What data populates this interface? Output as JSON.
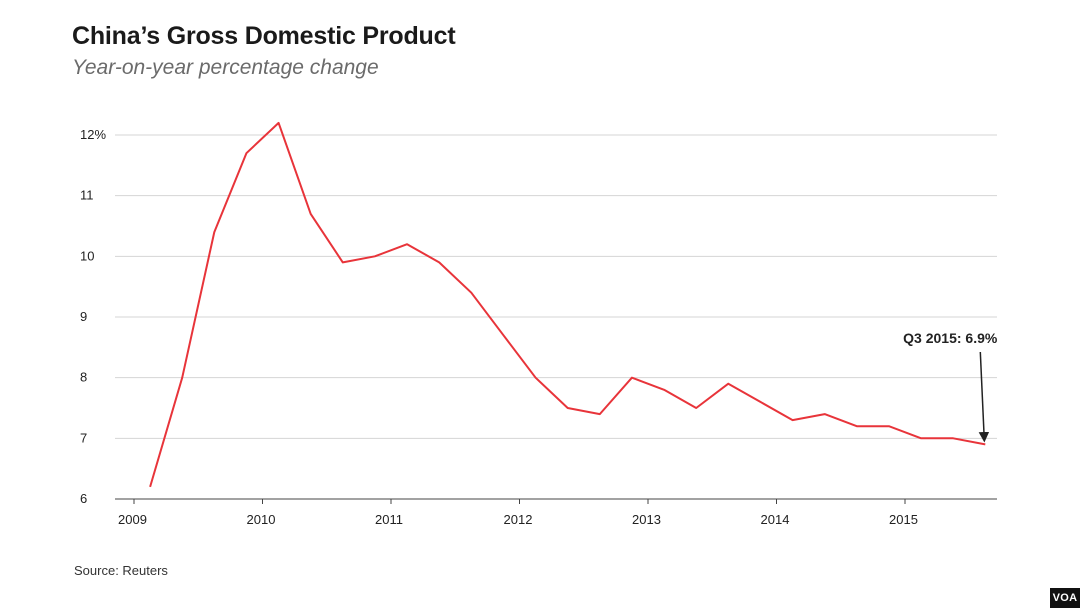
{
  "header": {
    "title": "China’s Gross Domestic Product",
    "subtitle": "Year-on-year percentage change"
  },
  "footer": {
    "source": "Source: Reuters",
    "logo": "VOA"
  },
  "colors": {
    "line": "#e8343a",
    "grid": "#d4d4d4",
    "axis": "#444444"
  },
  "chart_data": {
    "type": "line",
    "title": "China’s Gross Domestic Product",
    "subtitle": "Year-on-year percentage change",
    "xlabel": "",
    "ylabel": "",
    "xlim": [
      2009,
      2015.9
    ],
    "ylim": [
      6,
      12
    ],
    "x_ticks": [
      2009,
      2010,
      2011,
      2012,
      2013,
      2014,
      2015
    ],
    "x_tick_labels": [
      "2009",
      "2010",
      "2011",
      "2012",
      "2013",
      "2014",
      "2015"
    ],
    "y_ticks": [
      6,
      7,
      8,
      9,
      10,
      11,
      12
    ],
    "y_tick_labels": [
      "6",
      "7",
      "8",
      "9",
      "10",
      "11",
      "12%"
    ],
    "grid": "horizontal",
    "series": [
      {
        "points": [
          [
            "2009 Q1",
            2009.125,
            6.2
          ],
          [
            "2009 Q2",
            2009.375,
            8.0
          ],
          [
            "2009 Q3",
            2009.625,
            10.4
          ],
          [
            "2009 Q4",
            2009.875,
            11.7
          ],
          [
            "2010 Q1",
            2010.125,
            12.2
          ],
          [
            "2010 Q2",
            2010.375,
            10.7
          ],
          [
            "2010 Q3",
            2010.625,
            9.9
          ],
          [
            "2010 Q4",
            2010.875,
            10.0
          ],
          [
            "2011 Q1",
            2011.125,
            10.2
          ],
          [
            "2011 Q2",
            2011.375,
            9.9
          ],
          [
            "2011 Q3",
            2011.625,
            9.4
          ],
          [
            "2011 Q4",
            2011.875,
            8.7
          ],
          [
            "2012 Q1",
            2012.125,
            8.0
          ],
          [
            "2012 Q2",
            2012.375,
            7.5
          ],
          [
            "2012 Q3",
            2012.625,
            7.4
          ],
          [
            "2012 Q4",
            2012.875,
            8.0
          ],
          [
            "2013 Q1",
            2013.125,
            7.8
          ],
          [
            "2013 Q2",
            2013.375,
            7.5
          ],
          [
            "2013 Q3",
            2013.625,
            7.9
          ],
          [
            "2013 Q4",
            2013.875,
            7.6
          ],
          [
            "2014 Q1",
            2014.125,
            7.3
          ],
          [
            "2014 Q2",
            2014.375,
            7.4
          ],
          [
            "2014 Q3",
            2014.625,
            7.2
          ],
          [
            "2014 Q4",
            2014.875,
            7.2
          ],
          [
            "2015 Q1",
            2015.125,
            7.0
          ],
          [
            "2015 Q2",
            2015.375,
            7.0
          ],
          [
            "2015 Q3",
            2015.625,
            6.9
          ]
        ]
      }
    ],
    "annotations": [
      {
        "text": "Q3 2015: 6.9%",
        "x": 2015.625,
        "y": 6.9,
        "arrow": true
      }
    ]
  }
}
